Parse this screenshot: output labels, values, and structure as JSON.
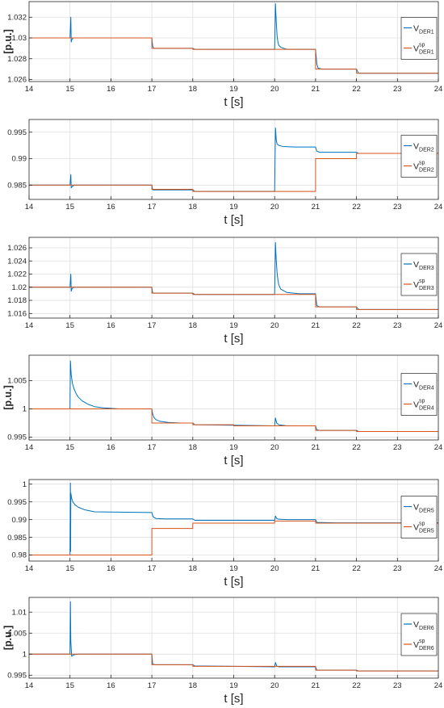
{
  "chart_data": [
    {
      "type": "line",
      "xlabel": "t [s]",
      "ylabel": "[p.u.]",
      "xlim": [
        14,
        24
      ],
      "ylim": [
        1.0258,
        1.0335
      ],
      "yticks": [
        1.026,
        1.028,
        1.03,
        1.032
      ],
      "xticks": [
        14,
        15,
        16,
        17,
        18,
        19,
        20,
        21,
        22,
        23,
        24
      ],
      "grid": true,
      "legend_position": "right",
      "legend": [
        {
          "main": "V",
          "sub": "DER1",
          "sup": ""
        },
        {
          "main": "V",
          "sub": "DER1",
          "sup": "sp"
        }
      ],
      "series": [
        {
          "color": "#0072BD",
          "x": [
            14,
            15,
            15.02,
            15.03,
            15.04,
            15.06,
            15.08,
            15.2,
            15.5,
            17,
            17.02,
            17.05,
            17.3,
            18,
            18.05,
            19,
            20,
            20.02,
            20.04,
            20.06,
            20.08,
            20.1,
            20.15,
            20.3,
            21,
            21.03,
            21.06,
            21.15,
            21.5,
            22,
            22.05,
            24
          ],
          "y": [
            1.03,
            1.03,
            1.032,
            1.0296,
            1.0298,
            1.0299,
            1.03,
            1.03,
            1.03,
            1.03,
            1.0292,
            1.029,
            1.029,
            1.029,
            1.0289,
            1.0289,
            1.0289,
            1.0333,
            1.0315,
            1.0302,
            1.0296,
            1.0293,
            1.0291,
            1.0289,
            1.0289,
            1.0275,
            1.0271,
            1.027,
            1.027,
            1.027,
            1.0266,
            1.0266
          ]
        },
        {
          "color": "#D95319",
          "x": [
            14,
            17,
            17,
            18,
            18,
            21,
            21,
            22,
            22,
            24
          ],
          "y": [
            1.03,
            1.03,
            1.029,
            1.029,
            1.0289,
            1.0289,
            1.027,
            1.027,
            1.0266,
            1.0266
          ]
        }
      ]
    },
    {
      "type": "line",
      "xlabel": "t [s]",
      "ylabel": "",
      "xlim": [
        14,
        24
      ],
      "ylim": [
        0.9823,
        0.9974
      ],
      "yticks": [
        0.985,
        0.99,
        0.995
      ],
      "xticks": [
        14,
        15,
        16,
        17,
        18,
        19,
        20,
        21,
        22,
        23,
        24
      ],
      "grid": true,
      "legend_position": "right",
      "legend": [
        {
          "main": "V",
          "sub": "DER2",
          "sup": ""
        },
        {
          "main": "V",
          "sub": "DER2",
          "sup": "sp"
        }
      ],
      "series": [
        {
          "color": "#0072BD",
          "x": [
            14,
            15,
            15.02,
            15.03,
            15.05,
            15.1,
            15.3,
            17,
            17.02,
            17.2,
            18,
            18.05,
            19,
            20,
            20.02,
            20.04,
            20.06,
            20.1,
            20.2,
            20.5,
            21,
            21.03,
            21.1,
            21.5,
            22,
            22.05,
            24
          ],
          "y": [
            0.985,
            0.985,
            0.987,
            0.9845,
            0.9847,
            0.985,
            0.985,
            0.985,
            0.9841,
            0.9841,
            0.9841,
            0.9838,
            0.9838,
            0.9838,
            0.9958,
            0.9935,
            0.9928,
            0.9925,
            0.9923,
            0.9922,
            0.9922,
            0.9914,
            0.9912,
            0.9912,
            0.9912,
            0.991,
            0.991
          ]
        },
        {
          "color": "#D95319",
          "x": [
            14,
            17,
            17,
            18,
            18,
            21,
            21,
            22,
            22,
            24
          ],
          "y": [
            0.985,
            0.985,
            0.9842,
            0.9842,
            0.9838,
            0.9838,
            0.99,
            0.99,
            0.991,
            0.991
          ]
        }
      ]
    },
    {
      "type": "line",
      "xlabel": "t [s]",
      "ylabel": "",
      "xlim": [
        14,
        24
      ],
      "ylim": [
        1.0153,
        1.0276
      ],
      "yticks": [
        1.016,
        1.018,
        1.02,
        1.022,
        1.024,
        1.026
      ],
      "xticks": [
        14,
        15,
        16,
        17,
        18,
        19,
        20,
        21,
        22,
        23,
        24
      ],
      "grid": true,
      "legend_position": "right",
      "legend": [
        {
          "main": "V",
          "sub": "DER3",
          "sup": ""
        },
        {
          "main": "V",
          "sub": "DER3",
          "sup": "sp"
        }
      ],
      "series": [
        {
          "color": "#0072BD",
          "x": [
            14,
            15,
            15.02,
            15.03,
            15.05,
            15.1,
            15.3,
            17,
            17.02,
            17.2,
            18,
            18.05,
            19,
            20,
            20.02,
            20.04,
            20.06,
            20.08,
            20.1,
            20.15,
            20.3,
            20.6,
            21,
            21.03,
            21.1,
            21.5,
            22,
            22.05,
            24
          ],
          "y": [
            1.02,
            1.02,
            1.022,
            1.0194,
            1.0198,
            1.02,
            1.02,
            1.02,
            1.0191,
            1.0191,
            1.0191,
            1.0189,
            1.0189,
            1.0189,
            1.0268,
            1.024,
            1.0222,
            1.0211,
            1.0204,
            1.0197,
            1.0192,
            1.019,
            1.019,
            1.0172,
            1.017,
            1.017,
            1.017,
            1.0166,
            1.0166
          ]
        },
        {
          "color": "#D95319",
          "x": [
            14,
            17,
            17,
            18,
            18,
            21,
            21,
            22,
            22,
            24
          ],
          "y": [
            1.02,
            1.02,
            1.0191,
            1.0191,
            1.0189,
            1.0189,
            1.017,
            1.017,
            1.0166,
            1.0166
          ]
        }
      ]
    },
    {
      "type": "line",
      "xlabel": "t [s]",
      "ylabel": "[p.u.]",
      "xlim": [
        14,
        24
      ],
      "ylim": [
        0.9945,
        1.0095
      ],
      "yticks": [
        0.995,
        1,
        1.005
      ],
      "xticks": [
        14,
        15,
        16,
        17,
        18,
        19,
        20,
        21,
        22,
        23,
        24
      ],
      "grid": true,
      "legend_position": "right",
      "legend": [
        {
          "main": "V",
          "sub": "DER4",
          "sup": ""
        },
        {
          "main": "V",
          "sub": "DER4",
          "sup": "sp"
        }
      ],
      "series": [
        {
          "color": "#0072BD",
          "x": [
            14,
            15,
            15.01,
            15.03,
            15.06,
            15.1,
            15.15,
            15.2,
            15.3,
            15.45,
            15.6,
            15.8,
            16.2,
            17,
            17.02,
            17.05,
            17.1,
            17.2,
            17.4,
            17.7,
            18,
            18.05,
            19,
            20,
            20.02,
            20.05,
            20.1,
            20.3,
            21,
            21.03,
            21.1,
            21.5,
            22,
            22.05,
            24
          ],
          "y": [
            1,
            1,
            1.0085,
            1.006,
            1.0045,
            1.0035,
            1.0027,
            1.0021,
            1.0014,
            1.0008,
            1.0004,
            1.0002,
            1,
            1,
            0.9991,
            0.9985,
            0.9981,
            0.9978,
            0.9976,
            0.9975,
            0.9975,
            0.9972,
            0.9971,
            0.997,
            0.9984,
            0.9975,
            0.9972,
            0.997,
            0.997,
            0.9963,
            0.9962,
            0.9962,
            0.9962,
            0.996,
            0.996
          ]
        },
        {
          "color": "#D95319",
          "x": [
            14,
            17,
            17,
            18,
            18,
            19,
            19,
            21,
            21,
            22,
            22,
            24
          ],
          "y": [
            1,
            1,
            0.9975,
            0.9975,
            0.9972,
            0.9972,
            0.997,
            0.997,
            0.9962,
            0.9962,
            0.996,
            0.996
          ]
        }
      ]
    },
    {
      "type": "line",
      "xlabel": "t [s]",
      "ylabel": "",
      "xlim": [
        14,
        24
      ],
      "ylim": [
        0.9783,
        1.0013
      ],
      "yticks": [
        0.98,
        0.985,
        0.99,
        0.995,
        1
      ],
      "xticks": [
        14,
        15,
        16,
        17,
        18,
        19,
        20,
        21,
        22,
        23,
        24
      ],
      "grid": true,
      "legend_position": "right",
      "legend": [
        {
          "main": "V",
          "sub": "DER5",
          "sup": ""
        },
        {
          "main": "V",
          "sub": "DER5",
          "sup": "sp"
        }
      ],
      "series": [
        {
          "color": "#0072BD",
          "x": [
            14,
            15,
            15.01,
            15.015,
            15.02,
            15.04,
            15.07,
            15.12,
            15.2,
            15.35,
            15.6,
            17,
            17.03,
            17.1,
            17.3,
            18,
            18.05,
            19,
            20,
            20.02,
            20.05,
            20.1,
            20.3,
            21,
            21.03,
            21.5,
            22,
            24
          ],
          "y": [
            0.98,
            0.98,
            1.0003,
            0.981,
            0.9975,
            0.996,
            0.995,
            0.9942,
            0.9935,
            0.9928,
            0.9922,
            0.992,
            0.9908,
            0.9903,
            0.9902,
            0.9902,
            0.9898,
            0.9898,
            0.9898,
            0.991,
            0.9903,
            0.9901,
            0.99,
            0.99,
            0.9892,
            0.9891,
            0.9891,
            0.9891
          ]
        },
        {
          "color": "#D95319",
          "x": [
            14,
            17,
            17,
            18,
            18,
            20,
            20,
            21,
            21,
            24
          ],
          "y": [
            0.98,
            0.98,
            0.9875,
            0.9875,
            0.989,
            0.989,
            0.9896,
            0.9896,
            0.989,
            0.989
          ]
        }
      ]
    },
    {
      "type": "line",
      "xlabel": "t [s]",
      "ylabel": "[p.u.]",
      "xlim": [
        14,
        24
      ],
      "ylim": [
        0.9943,
        1.0135
      ],
      "yticks": [
        0.995,
        1,
        1.005,
        1.01
      ],
      "xticks": [
        14,
        15,
        16,
        17,
        18,
        19,
        20,
        21,
        22,
        23,
        24
      ],
      "grid": true,
      "legend_position": "right",
      "legend": [
        {
          "main": "V",
          "sub": "DER6",
          "sup": ""
        },
        {
          "main": "V",
          "sub": "DER6",
          "sup": "sp"
        }
      ],
      "series": [
        {
          "color": "#0072BD",
          "x": [
            14,
            15,
            15.01,
            15.02,
            15.04,
            15.07,
            15.1,
            15.2,
            15.4,
            17,
            17.02,
            17.1,
            17.4,
            18,
            18.05,
            19,
            20,
            20.02,
            20.05,
            20.1,
            21,
            21.03,
            21.5,
            22,
            22.05,
            24
          ],
          "y": [
            1,
            1,
            1.0125,
            1.003,
            0.9995,
            0.9997,
            0.9999,
            1,
            1,
            1,
            0.9976,
            0.9975,
            0.9975,
            0.9975,
            0.9972,
            0.9971,
            0.997,
            0.998,
            0.9972,
            0.997,
            0.997,
            0.9962,
            0.9962,
            0.9962,
            0.996,
            0.996
          ]
        },
        {
          "color": "#D95319",
          "x": [
            14,
            17,
            17,
            18,
            18,
            21,
            21,
            22,
            22,
            24
          ],
          "y": [
            1,
            1,
            0.9975,
            0.9975,
            0.9971,
            0.9971,
            0.9962,
            0.9962,
            0.996,
            0.996
          ]
        }
      ]
    }
  ]
}
